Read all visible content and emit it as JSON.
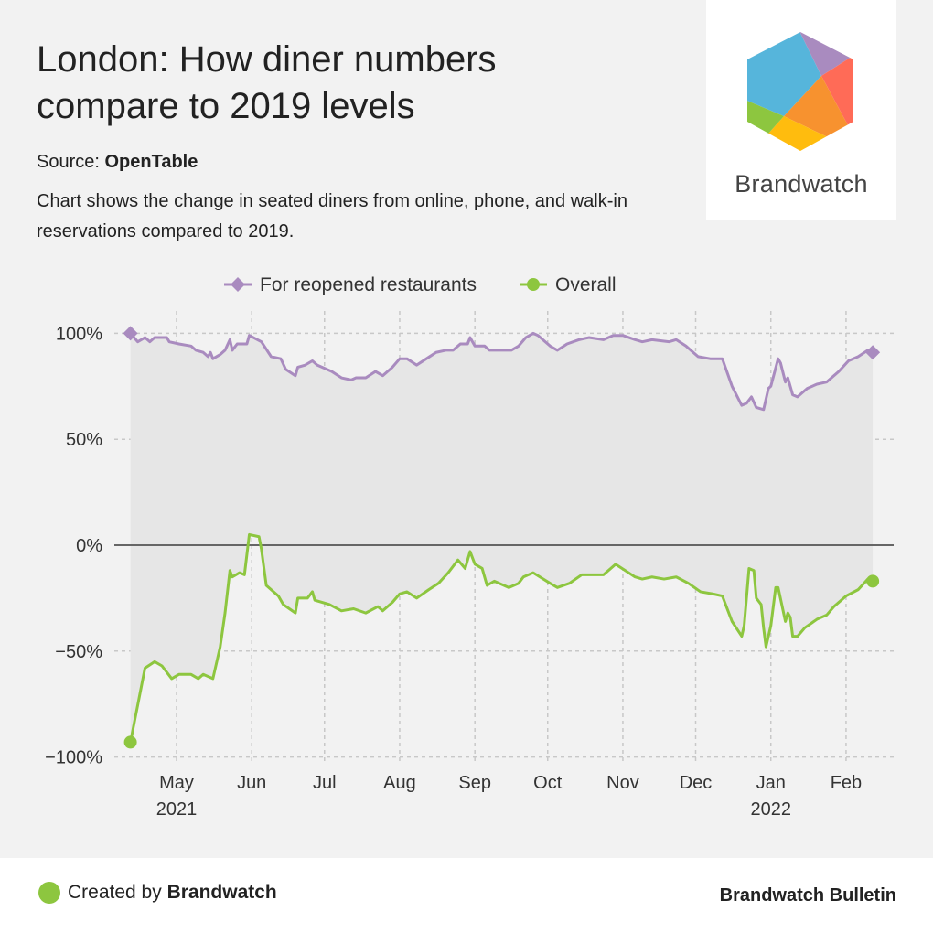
{
  "header": {
    "title_line1": "London: How diner numbers",
    "title_line2": "compare to 2019 levels",
    "source_label": "Source: ",
    "source_name": "OpenTable",
    "description": "Chart shows the change in seated diners from online, phone, and walk-in reservations compared to 2019."
  },
  "logo": {
    "text": "Brandwatch",
    "colors": [
      "#56b5db",
      "#a98bbf",
      "#ff6b57",
      "#f7922f",
      "#ffbc0e",
      "#8dc63f"
    ]
  },
  "footer": {
    "created_prefix": "Created by ",
    "created_brand": "Brandwatch",
    "bulletin": "Brandwatch Bulletin"
  },
  "chart_data": {
    "type": "line",
    "title": "London: How diner numbers compare to 2019 levels",
    "x_unit": "days since 2021-04-12",
    "x_start": "2021-04-12",
    "xlim": [
      0,
      306
    ],
    "ylim": [
      -100,
      100
    ],
    "ylabel": "",
    "xlabel": "",
    "grid": true,
    "legend_position": "top-center",
    "y_ticks": [
      {
        "v": 100,
        "label": "100%"
      },
      {
        "v": 50,
        "label": "50%"
      },
      {
        "v": 0,
        "label": "0%"
      },
      {
        "v": -50,
        "label": "−50%"
      },
      {
        "v": -100,
        "label": "−100%"
      }
    ],
    "x_ticks": [
      {
        "day": 19,
        "label": "May",
        "sub": "2021"
      },
      {
        "day": 50,
        "label": "Jun"
      },
      {
        "day": 80,
        "label": "Jul"
      },
      {
        "day": 111,
        "label": "Aug"
      },
      {
        "day": 142,
        "label": "Sep"
      },
      {
        "day": 172,
        "label": "Oct"
      },
      {
        "day": 203,
        "label": "Nov"
      },
      {
        "day": 233,
        "label": "Dec"
      },
      {
        "day": 264,
        "label": "Jan",
        "sub": "2022"
      },
      {
        "day": 295,
        "label": "Feb"
      }
    ],
    "series": [
      {
        "name": "For reopened restaurants",
        "color": "#a98bbf",
        "marker": "diamond",
        "x": [
          0,
          3,
          6,
          8,
          10,
          15,
          16,
          20,
          25,
          27,
          30,
          32,
          33,
          34,
          37,
          39,
          41,
          42,
          44,
          48,
          49,
          54,
          58,
          62,
          64,
          68,
          69,
          72,
          75,
          77,
          83,
          87,
          91,
          93,
          97,
          101,
          104,
          108,
          111,
          114,
          118,
          122,
          126,
          130,
          133,
          136,
          139,
          140,
          142,
          146,
          148,
          154,
          157,
          160,
          163,
          166,
          168,
          173,
          176,
          180,
          185,
          189,
          195,
          199,
          203,
          208,
          211,
          215,
          222,
          225,
          229,
          234,
          239,
          244,
          248,
          252,
          254,
          256,
          258,
          261,
          263,
          264,
          267,
          268,
          270,
          271,
          273,
          275,
          279,
          283,
          287,
          292,
          296,
          300,
          304,
          306
        ],
        "y": [
          100,
          96,
          98,
          96,
          98,
          98,
          96,
          95,
          94,
          92,
          91,
          89,
          91,
          88,
          90,
          92,
          97,
          92,
          95,
          95,
          99,
          96,
          89,
          88,
          83,
          80,
          84,
          85,
          87,
          85,
          82,
          79,
          78,
          79,
          79,
          82,
          80,
          84,
          88,
          88,
          85,
          88,
          91,
          92,
          92,
          95,
          95,
          98,
          94,
          94,
          92,
          92,
          92,
          94,
          98,
          100,
          99,
          94,
          92,
          95,
          97,
          98,
          97,
          99,
          99,
          97,
          96,
          97,
          96,
          97,
          94,
          89,
          88,
          88,
          75,
          66,
          67,
          70,
          65,
          64,
          74,
          75,
          88,
          86,
          77,
          79,
          71,
          70,
          74,
          76,
          77,
          82,
          87,
          89,
          92,
          91
        ]
      },
      {
        "name": "Overall",
        "color": "#8dc63f",
        "marker": "circle",
        "x": [
          0,
          6,
          10,
          13,
          17,
          20,
          25,
          28,
          30,
          34,
          37,
          39,
          41,
          42,
          45,
          47,
          49,
          53,
          54,
          56,
          61,
          63,
          68,
          69,
          73,
          75,
          76,
          82,
          87,
          92,
          97,
          102,
          104,
          108,
          111,
          114,
          118,
          123,
          127,
          131,
          135,
          138,
          140,
          142,
          145,
          147,
          150,
          156,
          160,
          162,
          166,
          173,
          176,
          181,
          186,
          191,
          195,
          200,
          204,
          208,
          211,
          215,
          220,
          225,
          230,
          235,
          240,
          244,
          248,
          252,
          253,
          255,
          257,
          258,
          260,
          261,
          262,
          264,
          266,
          267,
          270,
          271,
          272,
          273,
          275,
          278,
          283,
          287,
          290,
          295,
          300,
          304,
          306
        ],
        "y": [
          -93,
          -58,
          -55,
          -57,
          -63,
          -61,
          -61,
          -63,
          -61,
          -63,
          -48,
          -32,
          -12,
          -15,
          -13,
          -14,
          5,
          4,
          -2,
          -19,
          -24,
          -28,
          -32,
          -25,
          -25,
          -22,
          -26,
          -28,
          -31,
          -30,
          -32,
          -29,
          -31,
          -27,
          -23,
          -22,
          -25,
          -21,
          -18,
          -13,
          -7,
          -11,
          -3,
          -9,
          -11,
          -19,
          -17,
          -20,
          -18,
          -15,
          -13,
          -18,
          -20,
          -18,
          -14,
          -14,
          -14,
          -9,
          -12,
          -15,
          -16,
          -15,
          -16,
          -15,
          -18,
          -22,
          -23,
          -24,
          -36,
          -43,
          -38,
          -11,
          -12,
          -25,
          -28,
          -39,
          -48,
          -38,
          -20,
          -20,
          -36,
          -32,
          -34,
          -43,
          -43,
          -39,
          -35,
          -33,
          -29,
          -24,
          -21,
          -16,
          -17
        ]
      }
    ]
  }
}
